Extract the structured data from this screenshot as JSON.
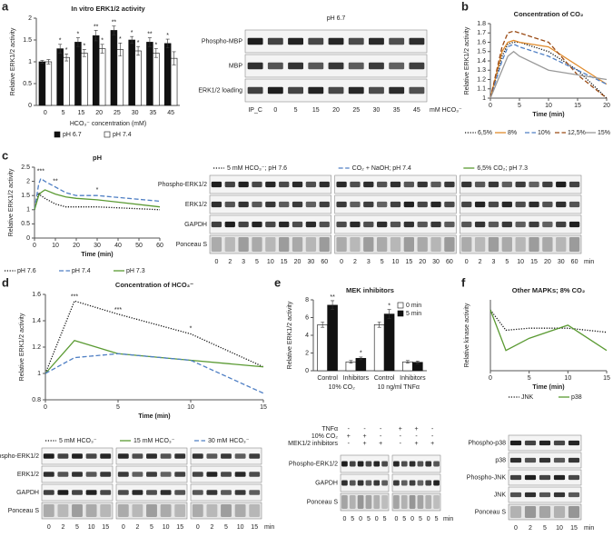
{
  "panels": [
    "a",
    "b",
    "c",
    "d",
    "e",
    "f"
  ],
  "chart_data": [
    {
      "type": "bar",
      "title": "In vitro ERK1/2 activity",
      "y_label": "Relative ERK1/2 activity",
      "x_label": "HCO₃⁻ concentration (mM)",
      "categories": [
        "0",
        "5",
        "15",
        "20",
        "25",
        "30",
        "35",
        "45"
      ],
      "series": [
        {
          "name": "pH 6.7",
          "color": "#111111",
          "values": [
            1,
            1.3,
            1.45,
            1.6,
            1.72,
            1.5,
            1.45,
            1.42
          ],
          "errors": [
            0.03,
            0.1,
            0.1,
            0.12,
            0.1,
            0.08,
            0.1,
            0.1
          ],
          "significance": [
            null,
            "*",
            "*",
            "**",
            "**",
            "*",
            "**",
            "*"
          ]
        },
        {
          "name": "pH 7.4",
          "color": "#ffffff",
          "values": [
            1,
            1.1,
            1.2,
            1.3,
            1.28,
            1.25,
            1.2,
            1.08
          ],
          "errors": [
            0.05,
            0.08,
            0.08,
            0.1,
            0.15,
            0.1,
            0.1,
            0.15
          ],
          "significance": [
            null,
            "*",
            "*",
            "*",
            "*",
            "*",
            "*",
            null
          ]
        }
      ],
      "ylim": [
        0,
        2
      ],
      "yticks": [
        0,
        0.5,
        1,
        1.5,
        2
      ],
      "legend": "bottom"
    },
    {
      "type": "line",
      "title": "Concentration of CO₂",
      "y_label": "Relative ERK1/2 activity",
      "x_label": "Time (min)",
      "x": [
        0,
        2,
        3,
        4,
        5,
        10,
        15,
        20
      ],
      "series": [
        {
          "name": "6,5%",
          "color": "#111111",
          "style": "dotted",
          "values": [
            1,
            1.45,
            1.58,
            1.6,
            1.6,
            1.5,
            1.3,
            1.0
          ]
        },
        {
          "name": "8%",
          "color": "#e08b2c",
          "style": "solid",
          "values": [
            1,
            1.5,
            1.6,
            1.62,
            1.6,
            1.55,
            1.35,
            1.15
          ]
        },
        {
          "name": "10%",
          "color": "#4f7fc4",
          "style": "dashed",
          "values": [
            1,
            1.4,
            1.55,
            1.58,
            1.55,
            1.45,
            1.3,
            1.15
          ]
        },
        {
          "name": "12,5%",
          "color": "#9a4a14",
          "style": "dashed",
          "values": [
            1,
            1.55,
            1.7,
            1.72,
            1.7,
            1.6,
            1.25,
            1.0
          ]
        },
        {
          "name": "15%",
          "color": "#999999",
          "style": "solid",
          "values": [
            1,
            1.3,
            1.45,
            1.5,
            1.45,
            1.3,
            1.25,
            1.2
          ]
        }
      ],
      "xlim": [
        0,
        20
      ],
      "xticks": [
        0,
        5,
        10,
        15,
        20
      ],
      "ylim": [
        1,
        1.8
      ],
      "yticks": [
        1,
        1.1,
        1.2,
        1.3,
        1.4,
        1.5,
        1.6,
        1.7,
        1.8
      ],
      "legend": "bottom"
    },
    {
      "type": "line",
      "title": "pH",
      "y_label": "Relative ERK1/2 activity",
      "x_label": "Time (min)",
      "x": [
        0,
        2,
        3,
        5,
        10,
        15,
        20,
        30,
        60
      ],
      "series": [
        {
          "name": "pH 7.6",
          "color": "#111111",
          "style": "dotted",
          "values": [
            1,
            1.6,
            1.5,
            1.4,
            1.2,
            1.1,
            1.1,
            1.1,
            1.0
          ]
        },
        {
          "name": "pH 7.4",
          "color": "#4f7fc4",
          "style": "dashed",
          "values": [
            1,
            1.9,
            2.1,
            2.0,
            1.8,
            1.6,
            1.5,
            1.5,
            1.3
          ]
        },
        {
          "name": "pH 7.3",
          "color": "#5a9a32",
          "style": "solid",
          "values": [
            1,
            1.5,
            1.6,
            1.7,
            1.55,
            1.45,
            1.4,
            1.35,
            1.1
          ]
        }
      ],
      "annotations": [
        {
          "text": "***",
          "x": 3,
          "y": 2.35
        },
        {
          "text": "**",
          "x": 10,
          "y": 2.0
        },
        {
          "text": "*",
          "x": 30,
          "y": 1.7
        }
      ],
      "xlim": [
        0,
        60
      ],
      "xticks": [
        0,
        10,
        20,
        30,
        40,
        50,
        60
      ],
      "ylim": [
        0,
        2.5
      ],
      "yticks": [
        0,
        0.5,
        1,
        1.5,
        2,
        2.5
      ],
      "legend": "bottom"
    },
    {
      "type": "line",
      "title": "Concentration of HCO₃⁻",
      "y_label": "Relative ERK1/2 activity",
      "x_label": "Time (min)",
      "x": [
        0,
        2,
        5,
        10,
        15
      ],
      "series": [
        {
          "name": "5 mM HCO₃⁻",
          "color": "#111111",
          "style": "dotted",
          "values": [
            1,
            1.55,
            1.45,
            1.3,
            1.05
          ]
        },
        {
          "name": "15 mM HCO₃⁻",
          "color": "#5a9a32",
          "style": "solid",
          "values": [
            1,
            1.25,
            1.15,
            1.1,
            1.05
          ]
        },
        {
          "name": "30 mM HCO₃⁻",
          "color": "#4f7fc4",
          "style": "dashed",
          "values": [
            1,
            1.12,
            1.15,
            1.1,
            0.85
          ]
        }
      ],
      "annotations": [
        {
          "text": "***",
          "x": 2,
          "y": 1.58
        },
        {
          "text": "***",
          "x": 5,
          "y": 1.48
        },
        {
          "text": "*",
          "x": 10,
          "y": 1.34
        }
      ],
      "xlim": [
        0,
        15
      ],
      "xticks": [
        0,
        5,
        10,
        15
      ],
      "ylim": [
        0.8,
        1.6
      ],
      "yticks": [
        0.8,
        1,
        1.2,
        1.4,
        1.6
      ],
      "legend": "bottom"
    },
    {
      "type": "bar",
      "title": "MEK inhibitors",
      "y_label": "Relative ERK1/2 activity",
      "categories": [
        "Control",
        "Inhibitors",
        "Control",
        "Inhibitors"
      ],
      "group_labels": [
        "10% CO₂",
        "10 ng/ml TNFα"
      ],
      "series": [
        {
          "name": "0 min",
          "color": "#ffffff",
          "values": [
            5.2,
            1.0,
            5.2,
            1.0
          ],
          "errors": [
            0.3,
            0.15,
            0.3,
            0.15
          ]
        },
        {
          "name": "5 min",
          "color": "#111111",
          "values": [
            7.4,
            1.4,
            6.4,
            0.95
          ],
          "errors": [
            0.5,
            0.15,
            0.5,
            0.15
          ],
          "significance": [
            "**",
            "*",
            "*",
            null
          ]
        }
      ],
      "ylim": [
        0,
        8
      ],
      "yticks": [
        0,
        2,
        4,
        6,
        8
      ],
      "legend": "top-right"
    },
    {
      "type": "line",
      "title": "Other MAPKs; 8% CO₂",
      "y_label": "Relative kinase activity",
      "x_label": "Time (min)",
      "x": [
        0,
        2,
        5,
        10,
        15
      ],
      "series": [
        {
          "name": "JNK",
          "color": "#111111",
          "style": "dotted",
          "values": [
            1,
            0.8,
            0.82,
            0.82,
            0.78
          ]
        },
        {
          "name": "p38",
          "color": "#5a9a32",
          "style": "solid",
          "values": [
            1,
            0.6,
            0.72,
            0.85,
            0.6
          ]
        }
      ],
      "xlim": [
        0,
        15
      ],
      "xticks": [
        0,
        5,
        10,
        15
      ],
      "ylim": [
        0.4,
        1.1
      ],
      "legend": "bottom"
    }
  ],
  "blots": [
    {
      "title": "pH 6.7",
      "rows": [
        "Phospho-MBP",
        "MBP",
        "ERK1/2 loading"
      ],
      "groups": [
        {
          "lanes": [
            "IP_C",
            "0",
            "5",
            "15",
            "20",
            "25",
            "30",
            "35",
            "45"
          ]
        }
      ],
      "unit": "mM HCO₃⁻"
    },
    {
      "rows": [
        "Phospho-ERK1/2",
        "ERK1/2",
        "GAPDH",
        "Ponceau S"
      ],
      "groups": [
        {
          "header": "5 mM HCO₃⁻; pH 7.6",
          "lanes": [
            "0",
            "2",
            "3",
            "5",
            "10",
            "15",
            "20",
            "30",
            "60"
          ]
        },
        {
          "header": "CO₂ + NaOH; pH 7.4",
          "lanes": [
            "0",
            "2",
            "3",
            "5",
            "10",
            "15",
            "20",
            "30",
            "60"
          ]
        },
        {
          "header": "6,5% CO₂; pH 7.3",
          "lanes": [
            "0",
            "2",
            "3",
            "5",
            "10",
            "15",
            "20",
            "30",
            "60"
          ]
        }
      ],
      "unit": "min"
    },
    {
      "rows": [
        "Phospho-ERK1/2",
        "ERK1/2",
        "GAPDH",
        "Ponceau S"
      ],
      "groups": [
        {
          "lanes": [
            "0",
            "2",
            "5",
            "10",
            "15"
          ]
        },
        {
          "lanes": [
            "0",
            "2",
            "5",
            "10",
            "15"
          ]
        },
        {
          "lanes": [
            "0",
            "2",
            "5",
            "10",
            "15"
          ]
        }
      ],
      "unit": "min"
    },
    {
      "rows": [
        "Phospho-ERK1/2",
        "GAPDH",
        "Ponceau S"
      ],
      "treatments": [
        {
          "name": "TNFα",
          "signs": [
            "-",
            "-",
            "-",
            "+",
            "+",
            "-"
          ]
        },
        {
          "name": "10% CO₂",
          "signs": [
            "+",
            "+",
            "-",
            "-",
            "-",
            "-"
          ]
        },
        {
          "name": "MEK1/2 inhibitors",
          "signs": [
            "-",
            "+",
            "+",
            "-",
            "+",
            "+"
          ]
        }
      ],
      "groups": [
        {
          "lanes": [
            "0",
            "5",
            "0",
            "5",
            "0",
            "5"
          ]
        },
        {
          "lanes": [
            "0",
            "5",
            "0",
            "5",
            "0",
            "5"
          ]
        }
      ],
      "unit": "min"
    },
    {
      "rows": [
        "Phospho-p38",
        "p38",
        "Phospho-JNK",
        "JNK",
        "Ponceau S"
      ],
      "groups": [
        {
          "lanes": [
            "0",
            "2",
            "5",
            "10",
            "15"
          ]
        }
      ],
      "unit": "min"
    }
  ]
}
